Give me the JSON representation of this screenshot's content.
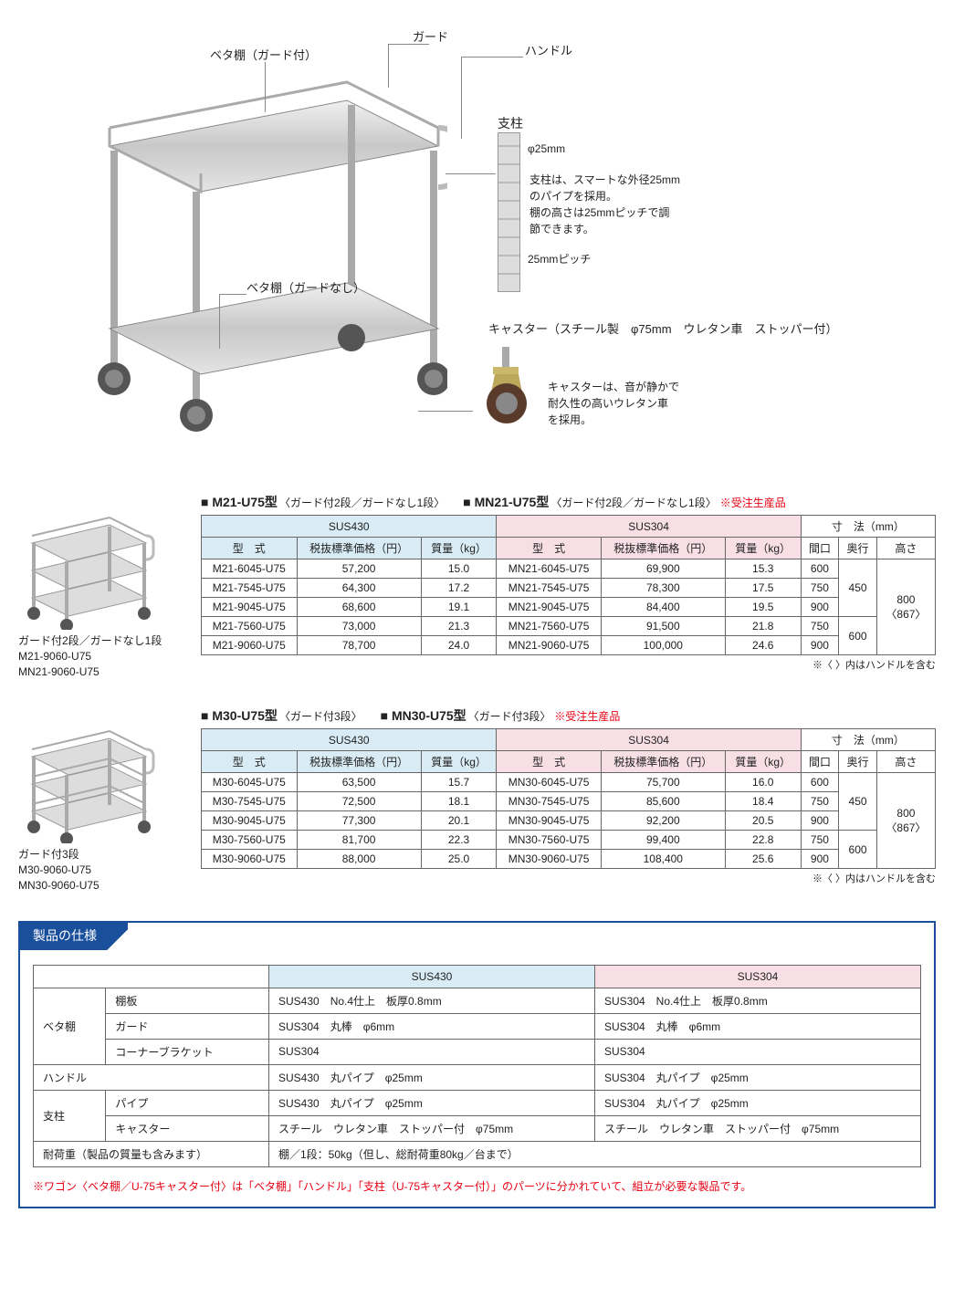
{
  "diagram": {
    "labels": {
      "beta_shelf_guard": "ベタ棚（ガード付）",
      "guard": "ガード",
      "handle": "ハンドル",
      "pillar": "支柱",
      "beta_shelf_no_guard": "ベタ棚（ガードなし）",
      "phi25": "φ25mm",
      "pillar_desc_1": "支柱は、スマートな外径25mm",
      "pillar_desc_2": "のパイプを採用。",
      "pillar_desc_3": "棚の高さは25mmピッチで調",
      "pillar_desc_4": "節できます。",
      "pitch25": "25mmピッチ",
      "caster_title": "キャスター（スチール製　φ75mm　ウレタン車　ストッパー付）",
      "caster_desc_1": "キャスターは、音が静かで",
      "caster_desc_2": "耐久性の高いウレタン車",
      "caster_desc_3": "を採用。"
    }
  },
  "tables": [
    {
      "title_a": "■ M21-U75型",
      "subtitle_a": "〈ガード付2段／ガードなし1段〉",
      "title_b": "■ MN21-U75型",
      "subtitle_b": "〈ガード付2段／ガードなし1段〉",
      "mto": "※受注生産品",
      "thumb_caption": [
        "ガード付2段／ガードなし1段",
        "M21-9060-U75",
        "MN21-9060-U75"
      ],
      "rows": [
        {
          "a_model": "M21-6045-U75",
          "a_price": "57,200",
          "a_wt": "15.0",
          "b_model": "MN21-6045-U75",
          "b_price": "69,900",
          "b_wt": "15.3",
          "w": "600",
          "d": "450",
          "h": "800\n〈867〉",
          "d_span": 3,
          "h_span": 5
        },
        {
          "a_model": "M21-7545-U75",
          "a_price": "64,300",
          "a_wt": "17.2",
          "b_model": "MN21-7545-U75",
          "b_price": "78,300",
          "b_wt": "17.5",
          "w": "750"
        },
        {
          "a_model": "M21-9045-U75",
          "a_price": "68,600",
          "a_wt": "19.1",
          "b_model": "MN21-9045-U75",
          "b_price": "84,400",
          "b_wt": "19.5",
          "w": "900"
        },
        {
          "a_model": "M21-7560-U75",
          "a_price": "73,000",
          "a_wt": "21.3",
          "b_model": "MN21-7560-U75",
          "b_price": "91,500",
          "b_wt": "21.8",
          "w": "750",
          "d": "600",
          "d_span": 2
        },
        {
          "a_model": "M21-9060-U75",
          "a_price": "78,700",
          "a_wt": "24.0",
          "b_model": "MN21-9060-U75",
          "b_price": "100,000",
          "b_wt": "24.6",
          "w": "900"
        }
      ],
      "note": "※〈 〉内はハンドルを含む"
    },
    {
      "title_a": "■ M30-U75型",
      "subtitle_a": "〈ガード付3段〉",
      "title_b": "■ MN30-U75型",
      "subtitle_b": "〈ガード付3段〉",
      "mto": "※受注生産品",
      "thumb_caption": [
        "ガード付3段",
        "M30-9060-U75",
        "MN30-9060-U75"
      ],
      "rows": [
        {
          "a_model": "M30-6045-U75",
          "a_price": "63,500",
          "a_wt": "15.7",
          "b_model": "MN30-6045-U75",
          "b_price": "75,700",
          "b_wt": "16.0",
          "w": "600",
          "d": "450",
          "h": "800\n〈867〉",
          "d_span": 3,
          "h_span": 5
        },
        {
          "a_model": "M30-7545-U75",
          "a_price": "72,500",
          "a_wt": "18.1",
          "b_model": "MN30-7545-U75",
          "b_price": "85,600",
          "b_wt": "18.4",
          "w": "750"
        },
        {
          "a_model": "M30-9045-U75",
          "a_price": "77,300",
          "a_wt": "20.1",
          "b_model": "MN30-9045-U75",
          "b_price": "92,200",
          "b_wt": "20.5",
          "w": "900"
        },
        {
          "a_model": "M30-7560-U75",
          "a_price": "81,700",
          "a_wt": "22.3",
          "b_model": "MN30-7560-U75",
          "b_price": "99,400",
          "b_wt": "22.8",
          "w": "750",
          "d": "600",
          "d_span": 2
        },
        {
          "a_model": "M30-9060-U75",
          "a_price": "88,000",
          "a_wt": "25.0",
          "b_model": "MN30-9060-U75",
          "b_price": "108,400",
          "b_wt": "25.6",
          "w": "900"
        }
      ],
      "note": "※〈 〉内はハンドルを含む"
    }
  ],
  "table_headers": {
    "sus430": "SUS430",
    "sus304": "SUS304",
    "dims": "寸　法（mm）",
    "model": "型　式",
    "price": "税抜標準価格（円）",
    "weight": "質量（kg）",
    "w": "間口",
    "d": "奥行",
    "h": "高さ"
  },
  "spec": {
    "header": "製品の仕様",
    "col_a": "SUS430",
    "col_b": "SUS304",
    "groups": [
      {
        "group": "ベタ棚",
        "rows": [
          {
            "label": "棚板",
            "a": "SUS430　No.4仕上　板厚0.8mm",
            "b": "SUS304　No.4仕上　板厚0.8mm"
          },
          {
            "label": "ガード",
            "a": "SUS304　丸棒　φ6mm",
            "b": "SUS304　丸棒　φ6mm"
          },
          {
            "label": "コーナーブラケット",
            "a": "SUS304",
            "b": "SUS304"
          }
        ]
      },
      {
        "group": "ハンドル",
        "rows": [
          {
            "label": "",
            "a": "SUS430　丸パイプ　φ25mm",
            "b": "SUS304　丸パイプ　φ25mm"
          }
        ]
      },
      {
        "group": "支柱",
        "rows": [
          {
            "label": "パイプ",
            "a": "SUS430　丸パイプ　φ25mm",
            "b": "SUS304　丸パイプ　φ25mm"
          },
          {
            "label": "キャスター",
            "a": "スチール　ウレタン車　ストッパー付　φ75mm",
            "b": "スチール　ウレタン車　ストッパー付　φ75mm"
          }
        ]
      }
    ],
    "load_label": "耐荷重（製品の質量も含みます）",
    "load_value": "棚／1段：50kg（但し、総耐荷重80kg／台まで）",
    "note": "※ワゴン〈ベタ棚／U-75キャスター付〉は「ベタ棚」「ハンドル」「支柱（U-75キャスター付）」のパーツに分かれていて、組立が必要な製品です。"
  },
  "colors": {
    "sus430_bg": "#d9ecf5",
    "sus304_bg": "#f7dfe5",
    "accent_blue": "#1a4f9c",
    "accent_red": "#e60012",
    "border": "#666666"
  }
}
